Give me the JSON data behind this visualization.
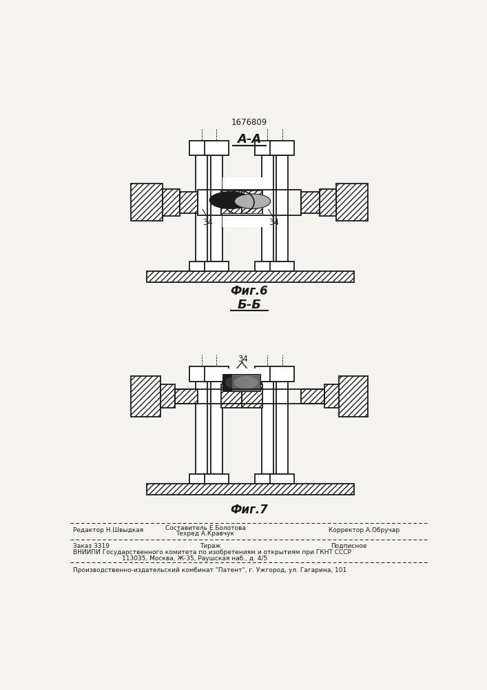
{
  "patent_number": "1676809",
  "fig_a_label": "А-А",
  "fig_b_label": "Б-Б",
  "fig6_label": "Фиг.6",
  "fig7_label": "Фиг.7",
  "label_34": "34",
  "footer_sestavitel": "Составитель Е.Болотова",
  "footer_tekhred": "Техред А.Кравчук",
  "footer_editor": "Редактор Н.Швыдкая",
  "footer_korrektor": "Корректор А.Обручар",
  "footer_zakaz": "Заказ 3319",
  "footer_tirazh": "Тираж",
  "footer_podpisnoe": "Подписное",
  "footer_vniipи": "ВНИИПИ Государственного комитета по изобретениям и открытиям при ГКНТ СССР",
  "footer_addr": "113035, Москва, Ж-35, Раушская наб., д. 4/5",
  "footer_patent": "Производственно-издательский комбинат \"Патент\", г. Ужгород, ул. Гагарина, 101",
  "bg_color": "#f5f3ef",
  "line_color": "#1a1a1a"
}
